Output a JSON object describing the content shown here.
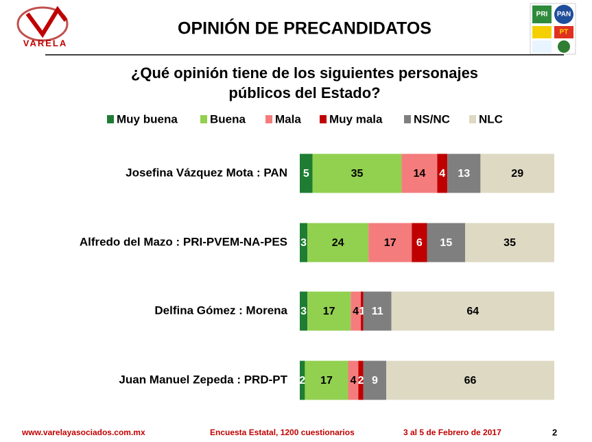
{
  "header": {
    "logo": "VARELA",
    "party_logos": [
      "PRI",
      "PAN",
      "PT"
    ]
  },
  "chart_data": {
    "type": "stacked-bar-horizontal",
    "title": "OPINIÓN DE PRECANDIDATOS",
    "subtitle": [
      "¿Qué opinión tiene de los siguientes personajes",
      "públicos del Estado?"
    ],
    "categories": [
      "Josefina Vázquez Mota : PAN",
      "Alfredo del Mazo : PRI-PVEM-NA-PES",
      "Delfina Gómez : Morena",
      "Juan Manuel Zepeda : PRD-PT"
    ],
    "series": [
      {
        "name": "Muy buena",
        "color": "#1e7d32",
        "label_color": "#ffffff",
        "values": [
          5,
          3,
          3,
          2
        ]
      },
      {
        "name": "Buena",
        "color": "#92d050",
        "label_color": "#000000",
        "values": [
          35,
          24,
          17,
          17
        ]
      },
      {
        "name": "Mala",
        "color": "#f47c7c",
        "label_color": "#000000",
        "values": [
          14,
          17,
          4,
          4
        ]
      },
      {
        "name": "Muy mala",
        "color": "#c00000",
        "label_color": "#ffffff",
        "values": [
          4,
          6,
          1,
          2
        ]
      },
      {
        "name": "NS/NC",
        "color": "#7f7f7f",
        "label_color": "#ffffff",
        "values": [
          13,
          15,
          11,
          9
        ]
      },
      {
        "name": "NLC",
        "color": "#ddd9c3",
        "label_color": "#000000",
        "values": [
          29,
          35,
          64,
          66
        ]
      }
    ],
    "legend": "top"
  },
  "footer": {
    "website": "www.varelayasociados.com.mx",
    "survey": "Encuesta Estatal, 1200 cuestionarios",
    "dates": "3 al 5 de Febrero de 2017",
    "page": "2"
  }
}
